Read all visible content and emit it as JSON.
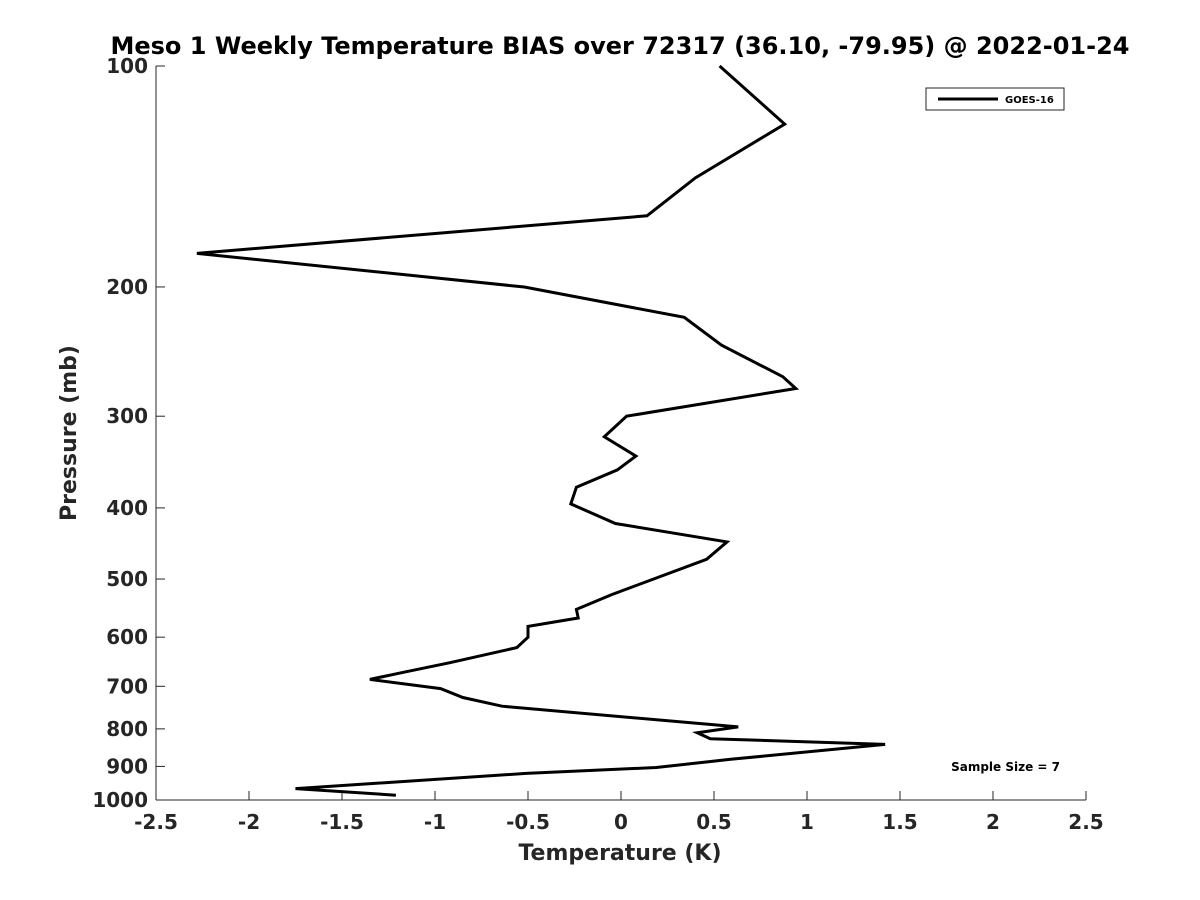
{
  "chart_data": {
    "type": "line",
    "title": "Meso 1 Weekly Temperature BIAS over 72317 (36.10, -79.95) @ 2022-01-24",
    "xlabel": "Temperature (K)",
    "ylabel": "Pressure (mb)",
    "xlim": [
      -2.5,
      2.5
    ],
    "ylim": [
      100,
      1000
    ],
    "y_scale": "log",
    "y_reversed": true,
    "x_ticks": [
      "-2.5",
      "-2",
      "-1.5",
      "-1",
      "-0.5",
      "0",
      "0.5",
      "1",
      "1.5",
      "2",
      "2.5"
    ],
    "x_tick_values": [
      -2.5,
      -2,
      -1.5,
      -1,
      -0.5,
      0,
      0.5,
      1,
      1.5,
      2,
      2.5
    ],
    "y_ticks": [
      "100",
      "200",
      "300",
      "400",
      "500",
      "600",
      "700",
      "800",
      "900",
      "1000"
    ],
    "y_tick_values": [
      100,
      200,
      300,
      400,
      500,
      600,
      700,
      800,
      900,
      1000
    ],
    "grid": false,
    "legend_position": "top-right",
    "series": [
      {
        "name": "GOES-16",
        "color": "#000000",
        "points": [
          {
            "x": 0.53,
            "p": 100
          },
          {
            "x": 0.88,
            "p": 120
          },
          {
            "x": 0.4,
            "p": 142
          },
          {
            "x": 0.14,
            "p": 160
          },
          {
            "x": -2.28,
            "p": 180
          },
          {
            "x": -0.52,
            "p": 200
          },
          {
            "x": 0.34,
            "p": 220
          },
          {
            "x": 0.54,
            "p": 240
          },
          {
            "x": 0.87,
            "p": 265
          },
          {
            "x": 0.94,
            "p": 275
          },
          {
            "x": 0.03,
            "p": 300
          },
          {
            "x": -0.09,
            "p": 320
          },
          {
            "x": 0.08,
            "p": 340
          },
          {
            "x": -0.02,
            "p": 355
          },
          {
            "x": -0.24,
            "p": 375
          },
          {
            "x": -0.27,
            "p": 395
          },
          {
            "x": -0.03,
            "p": 420
          },
          {
            "x": 0.57,
            "p": 445
          },
          {
            "x": 0.46,
            "p": 470
          },
          {
            "x": -0.05,
            "p": 525
          },
          {
            "x": -0.24,
            "p": 550
          },
          {
            "x": -0.23,
            "p": 565
          },
          {
            "x": -0.5,
            "p": 580
          },
          {
            "x": -0.5,
            "p": 600
          },
          {
            "x": -0.56,
            "p": 620
          },
          {
            "x": -0.92,
            "p": 650
          },
          {
            "x": -1.17,
            "p": 670
          },
          {
            "x": -1.35,
            "p": 685
          },
          {
            "x": -0.97,
            "p": 705
          },
          {
            "x": -0.85,
            "p": 725
          },
          {
            "x": -0.64,
            "p": 745
          },
          {
            "x": 0.63,
            "p": 795
          },
          {
            "x": 0.41,
            "p": 810
          },
          {
            "x": 0.48,
            "p": 825
          },
          {
            "x": 1.42,
            "p": 840
          },
          {
            "x": 0.59,
            "p": 880
          },
          {
            "x": 0.19,
            "p": 903
          },
          {
            "x": -0.51,
            "p": 920
          },
          {
            "x": -1.75,
            "p": 965
          },
          {
            "x": -1.21,
            "p": 985
          }
        ]
      }
    ],
    "annotation": "Sample Size = 7"
  }
}
